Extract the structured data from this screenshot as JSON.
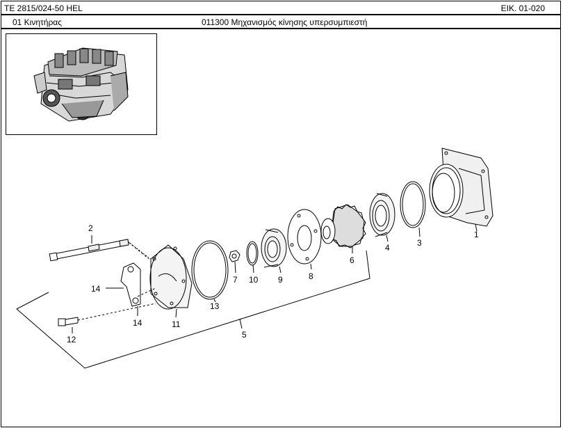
{
  "header": {
    "model": "TE 2815/024-50 HEL",
    "figure": "EIK. 01-020",
    "group": "01  Κινητήρας",
    "assembly": "011300  Μηχανισμός κίνησης υπερσυμπιεστή"
  },
  "callouts": {
    "c1": "1",
    "c2": "2",
    "c3": "3",
    "c4": "4",
    "c5": "5",
    "c6": "6",
    "c7": "7",
    "c8": "8",
    "c9": "9",
    "c10": "10",
    "c11": "11",
    "c12": "12",
    "c13": "13",
    "c14a": "14",
    "c14b": "14"
  },
  "icons": {
    "thumbnail": "engine-thumbnail-icon"
  }
}
